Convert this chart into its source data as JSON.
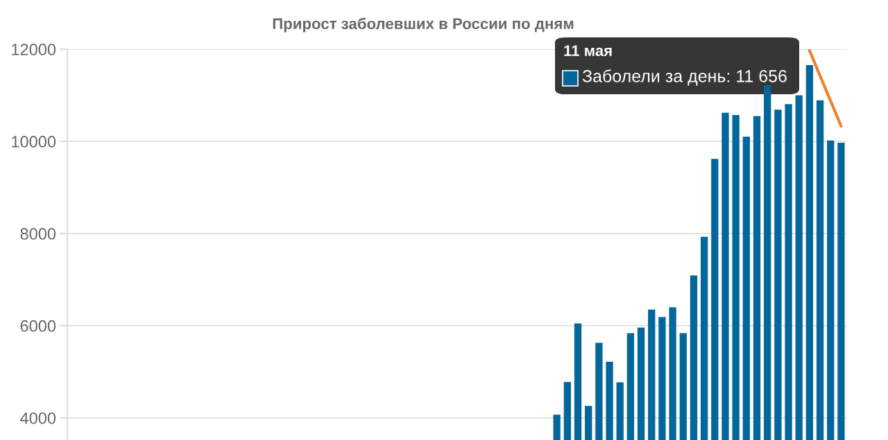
{
  "chart_data": {
    "type": "bar",
    "title": "Прирост заболевших в России по дням",
    "categories": [
      null,
      null,
      null,
      null,
      null,
      null,
      null,
      null,
      null,
      null,
      null,
      null,
      null,
      null,
      null,
      null,
      null,
      null,
      null,
      null,
      null,
      null,
      null,
      null,
      null,
      null,
      null,
      null,
      null,
      null,
      null,
      null,
      null,
      null,
      null,
      null,
      null,
      null,
      null,
      null,
      null,
      null,
      null,
      null,
      null,
      null,
      null,
      null,
      null,
      null,
      null,
      null,
      null,
      null,
      null,
      null,
      null,
      null,
      null,
      null,
      null,
      null,
      null,
      null,
      null,
      null,
      null,
      null,
      null,
      null,
      null,
      null,
      null,
      null
    ],
    "series": [
      {
        "color": "#04679b",
        "values": [
          null,
          null,
          null,
          null,
          null,
          null,
          null,
          null,
          null,
          null,
          null,
          null,
          null,
          null,
          null,
          null,
          null,
          null,
          null,
          null,
          null,
          null,
          null,
          null,
          null,
          null,
          null,
          null,
          null,
          null,
          null,
          null,
          null,
          null,
          null,
          null,
          null,
          null,
          null,
          null,
          null,
          null,
          null,
          null,
          null,
          null,
          4070,
          4780,
          6050,
          4260,
          5630,
          5220,
          4770,
          5840,
          5960,
          6350,
          6190,
          6400,
          5840,
          7090,
          7930,
          9620,
          10620,
          10570,
          10100,
          10550,
          11220,
          10690,
          10810,
          11000,
          11656,
          10890,
          10020,
          9970
        ]
      },
      {
        "type": "line",
        "color": "#f07f2e",
        "values": [
          null,
          null,
          null,
          null,
          null,
          null,
          null,
          null,
          null,
          null,
          null,
          null,
          null,
          null,
          null,
          null,
          null,
          null,
          null,
          null,
          null,
          null,
          null,
          null,
          null,
          null,
          null,
          null,
          null,
          null,
          null,
          null,
          null,
          null,
          null,
          null,
          null,
          null,
          null,
          null,
          null,
          null,
          null,
          null,
          null,
          null,
          null,
          null,
          null,
          null,
          null,
          null,
          null,
          null,
          null,
          null,
          null,
          null,
          null,
          null,
          null,
          null,
          null,
          null,
          null,
          null,
          null,
          null,
          null,
          null,
          11970,
          null,
          null,
          10330
        ]
      }
    ],
    "ylim": [
      3520,
      12000
    ],
    "yticks": [
      4000,
      6000,
      8000,
      10000,
      12000
    ],
    "grid": "y",
    "annotations": [
      "11 мая",
      "Заболели за день: 11 656"
    ]
  }
}
